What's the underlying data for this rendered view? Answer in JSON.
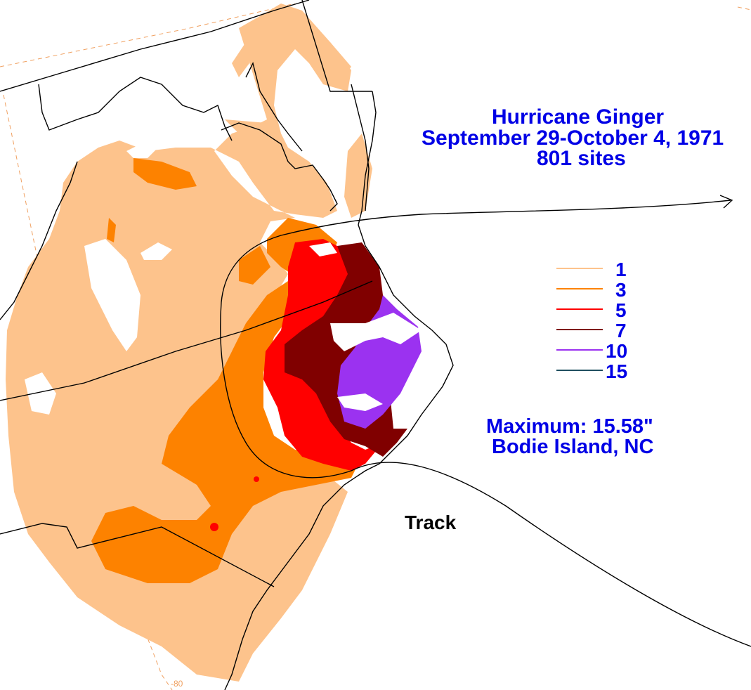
{
  "title": {
    "line1": "Hurricane Ginger",
    "line2": "September 29-October 4, 1971",
    "line3": "801 sites"
  },
  "legend": [
    {
      "label": "1",
      "color": "#fdc38c"
    },
    {
      "label": "3",
      "color": "#fd8200"
    },
    {
      "label": "5",
      "color": "#ff0000"
    },
    {
      "label": "7",
      "color": "#800000"
    },
    {
      "label": "10",
      "color": "#9b32f0"
    },
    {
      "label": "15",
      "color": "#1f4f5f"
    }
  ],
  "maximum": {
    "line1": "Maximum:  15.58\"",
    "line2": "Bodie Island, NC"
  },
  "track_label": "Track",
  "longitude_label": "-80",
  "colors": {
    "text": "#0000e6",
    "c1": "#fdc38c",
    "c3": "#fd8200",
    "c5": "#ff0000",
    "c7": "#800000",
    "c10": "#9b32f0",
    "boundary": "#000000",
    "gridline": "#f0a060"
  }
}
